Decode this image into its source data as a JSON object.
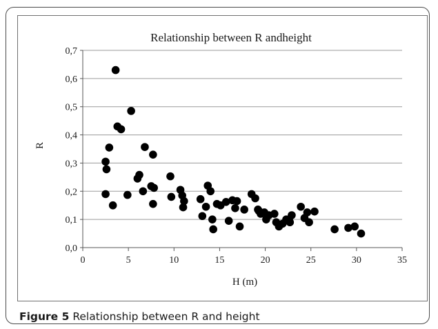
{
  "figure": {
    "label": "Figure 5",
    "caption": "Relationship between R and height"
  },
  "chart_data": {
    "type": "scatter",
    "title": "Relationship between R andheight",
    "xlabel": "H (m)",
    "ylabel": "R",
    "xlim": [
      0,
      35
    ],
    "ylim": [
      0,
      0.7
    ],
    "x_ticks": [
      "0",
      "5",
      "10",
      "15",
      "20",
      "25",
      "30",
      "35"
    ],
    "y_ticks": [
      "0,0",
      "0,1",
      "0,2",
      "0,3",
      "0,4",
      "0,5",
      "0,6",
      "0,7"
    ],
    "grid": "horizontal",
    "marker_color": "#000000",
    "points": [
      [
        3.6,
        0.63
      ],
      [
        5.3,
        0.485
      ],
      [
        3.8,
        0.43
      ],
      [
        4.2,
        0.42
      ],
      [
        2.9,
        0.355
      ],
      [
        2.5,
        0.305
      ],
      [
        2.6,
        0.278
      ],
      [
        6.8,
        0.357
      ],
      [
        7.7,
        0.33
      ],
      [
        6.2,
        0.258
      ],
      [
        6.0,
        0.245
      ],
      [
        2.5,
        0.19
      ],
      [
        3.3,
        0.15
      ],
      [
        4.9,
        0.187
      ],
      [
        6.6,
        0.2
      ],
      [
        7.5,
        0.218
      ],
      [
        7.8,
        0.212
      ],
      [
        7.7,
        0.155
      ],
      [
        9.6,
        0.253
      ],
      [
        9.7,
        0.18
      ],
      [
        10.7,
        0.205
      ],
      [
        10.9,
        0.185
      ],
      [
        11.1,
        0.165
      ],
      [
        11.0,
        0.143
      ],
      [
        12.9,
        0.172
      ],
      [
        13.1,
        0.112
      ],
      [
        13.5,
        0.145
      ],
      [
        13.7,
        0.22
      ],
      [
        14.0,
        0.2
      ],
      [
        14.2,
        0.1
      ],
      [
        14.3,
        0.065
      ],
      [
        14.7,
        0.155
      ],
      [
        15.1,
        0.15
      ],
      [
        15.7,
        0.162
      ],
      [
        16.0,
        0.095
      ],
      [
        16.4,
        0.168
      ],
      [
        16.7,
        0.14
      ],
      [
        16.9,
        0.165
      ],
      [
        17.2,
        0.075
      ],
      [
        17.7,
        0.135
      ],
      [
        18.5,
        0.19
      ],
      [
        18.9,
        0.175
      ],
      [
        19.2,
        0.135
      ],
      [
        19.5,
        0.12
      ],
      [
        19.3,
        0.13
      ],
      [
        19.9,
        0.125
      ],
      [
        20.1,
        0.1
      ],
      [
        20.4,
        0.115
      ],
      [
        21.0,
        0.12
      ],
      [
        21.2,
        0.09
      ],
      [
        21.5,
        0.075
      ],
      [
        21.9,
        0.085
      ],
      [
        22.3,
        0.1
      ],
      [
        22.6,
        0.1
      ],
      [
        22.9,
        0.115
      ],
      [
        22.7,
        0.09
      ],
      [
        23.9,
        0.145
      ],
      [
        24.3,
        0.105
      ],
      [
        24.6,
        0.125
      ],
      [
        24.8,
        0.09
      ],
      [
        25.4,
        0.128
      ],
      [
        27.6,
        0.065
      ],
      [
        29.1,
        0.07
      ],
      [
        29.8,
        0.075
      ],
      [
        30.5,
        0.05
      ]
    ]
  }
}
